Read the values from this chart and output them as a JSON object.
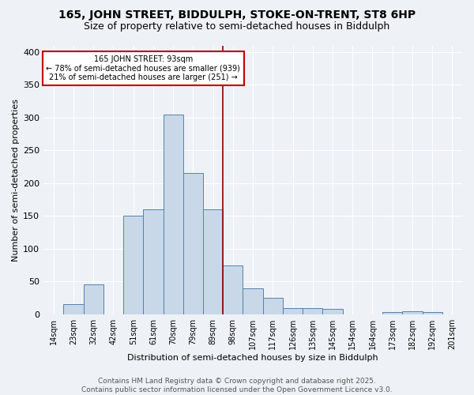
{
  "title1": "165, JOHN STREET, BIDDULPH, STOKE-ON-TRENT, ST8 6HP",
  "title2": "Size of property relative to semi-detached houses in Biddulph",
  "xlabel": "Distribution of semi-detached houses by size in Biddulph",
  "ylabel": "Number of semi-detached properties",
  "categories": [
    "14sqm",
    "23sqm",
    "32sqm",
    "42sqm",
    "51sqm",
    "61sqm",
    "70sqm",
    "79sqm",
    "89sqm",
    "98sqm",
    "107sqm",
    "117sqm",
    "126sqm",
    "135sqm",
    "145sqm",
    "154sqm",
    "164sqm",
    "173sqm",
    "182sqm",
    "192sqm",
    "201sqm"
  ],
  "values": [
    0,
    15,
    45,
    0,
    150,
    160,
    305,
    215,
    160,
    75,
    40,
    25,
    10,
    10,
    8,
    0,
    0,
    3,
    5,
    3,
    0
  ],
  "bar_color": "#c8d8e8",
  "bar_edge_color": "#5580b0",
  "property_label": "165 JOHN STREET: 93sqm",
  "pct_smaller": 78,
  "count_smaller": 939,
  "pct_larger": 21,
  "count_larger": 251,
  "vline_color": "#8b0000",
  "vline_bar_index": 8,
  "annotation_box_color": "#ffffff",
  "annotation_box_edge": "#c00000",
  "ylim": [
    0,
    410
  ],
  "yticks": [
    0,
    50,
    100,
    150,
    200,
    250,
    300,
    350,
    400
  ],
  "footer": "Contains HM Land Registry data © Crown copyright and database right 2025.\nContains public sector information licensed under the Open Government Licence v3.0.",
  "bg_color": "#eef2f7",
  "plot_bg_color": "#eef2f7",
  "grid_color": "#ffffff",
  "title1_fontsize": 10,
  "title2_fontsize": 9,
  "footer_fontsize": 6.5
}
